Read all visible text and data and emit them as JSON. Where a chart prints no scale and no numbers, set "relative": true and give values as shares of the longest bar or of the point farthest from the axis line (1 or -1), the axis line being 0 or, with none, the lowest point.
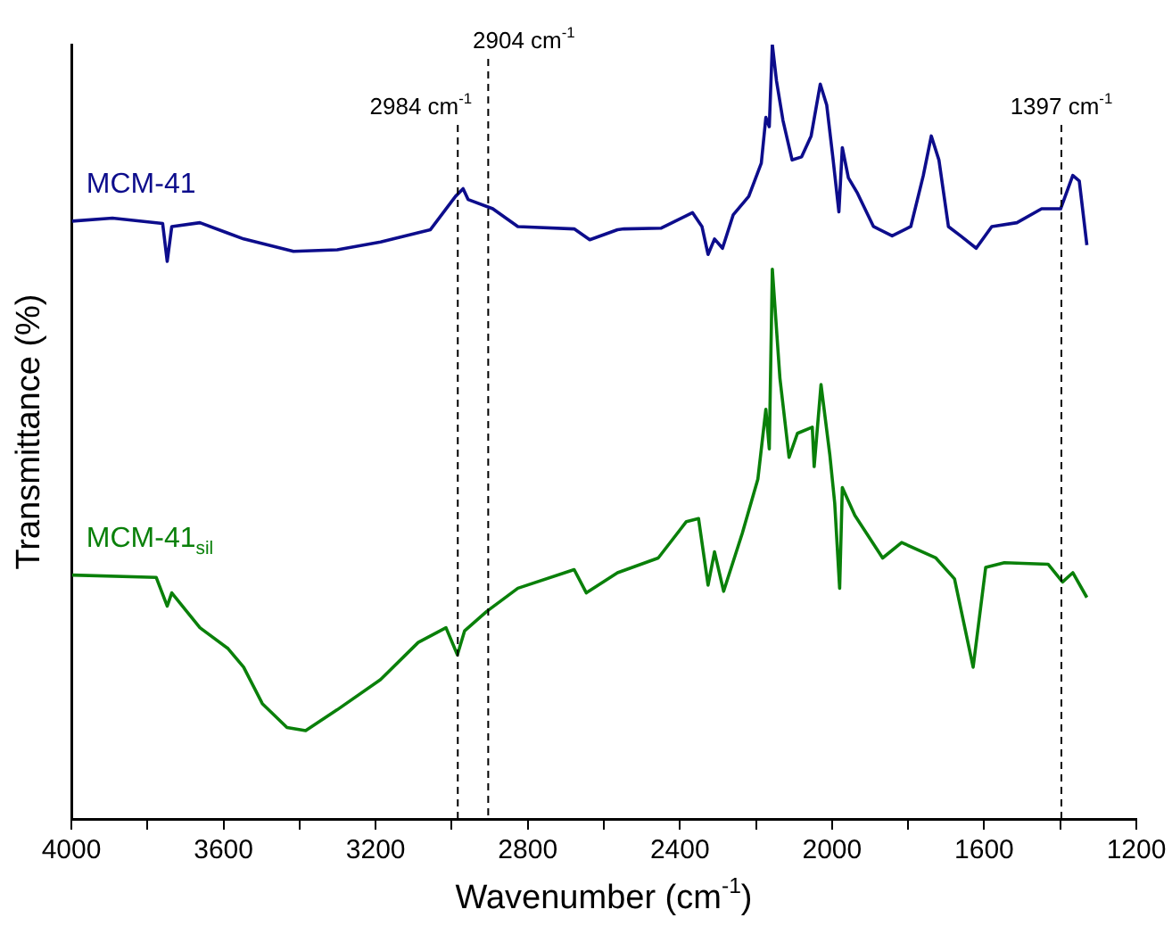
{
  "chart_data": {
    "type": "line",
    "relative": true,
    "xlabel": "Wavenumber (cm$^{-1}$)",
    "ylabel": "Transmittance (%)",
    "xlim": [
      4000,
      1200
    ],
    "xticks": [
      4000,
      {
        "value": 3800,
        "label": null
      },
      3600,
      {
        "value": 3400,
        "label": null
      },
      3200,
      {
        "value": 3000,
        "label": null
      },
      2800,
      {
        "value": 2600,
        "label": null
      },
      2400,
      {
        "value": 2200,
        "label": null
      },
      2000,
      {
        "value": 1800,
        "label": null
      },
      1600,
      {
        "value": 1400,
        "label": null
      },
      1200
    ],
    "tick_labels": "x",
    "grid": false,
    "legend": false,
    "marker": "none",
    "line_style": "solid",
    "ref_lines": [
      {
        "axis": "x",
        "value": 2984,
        "label": "2984 cm$^{-1}$",
        "color": "#000000",
        "line_style": "dashed"
      },
      {
        "axis": "x",
        "value": 2904,
        "label": "2904 cm$^{-1}$",
        "color": "#000000",
        "line_style": "dashed"
      },
      {
        "axis": "x",
        "value": 1397,
        "label": "1397 cm$^{-1}$",
        "color": "#000000",
        "line_style": "dashed"
      }
    ],
    "series": [
      {
        "name": "MCM-41",
        "color": "#0d0d8c",
        "x": [
          3998,
          3892,
          3760,
          3748,
          3736,
          3662,
          3547,
          3416,
          3301,
          3187,
          3056,
          2990,
          2970,
          2957,
          2892,
          2826,
          2678,
          2637,
          2564,
          2547,
          2449,
          2367,
          2342,
          2326,
          2309,
          2288,
          2260,
          2219,
          2186,
          2174,
          2165,
          2157,
          2146,
          2129,
          2105,
          2080,
          2055,
          2031,
          2014,
          1998,
          1982,
          1973,
          1957,
          1933,
          1891,
          1842,
          1793,
          1760,
          1739,
          1719,
          1694,
          1662,
          1621,
          1580,
          1514,
          1449,
          1399,
          1367,
          1350,
          1330
        ],
        "values": [
          0.772,
          0.776,
          0.769,
          0.72,
          0.765,
          0.77,
          0.749,
          0.733,
          0.735,
          0.745,
          0.761,
          0.804,
          0.814,
          0.8,
          0.788,
          0.765,
          0.762,
          0.748,
          0.761,
          0.762,
          0.763,
          0.783,
          0.765,
          0.729,
          0.749,
          0.737,
          0.78,
          0.804,
          0.847,
          0.906,
          0.894,
          1.0,
          0.953,
          0.902,
          0.851,
          0.855,
          0.882,
          0.949,
          0.922,
          0.855,
          0.784,
          0.867,
          0.828,
          0.808,
          0.765,
          0.753,
          0.765,
          0.831,
          0.882,
          0.851,
          0.765,
          0.753,
          0.737,
          0.765,
          0.77,
          0.788,
          0.788,
          0.831,
          0.824,
          0.741
        ]
      },
      {
        "name": "MCM-41$_{sil}$",
        "color": "#0a800a",
        "x": [
          3998,
          3777,
          3748,
          3736,
          3662,
          3588,
          3547,
          3498,
          3433,
          3384,
          3301,
          3187,
          3088,
          3015,
          2985,
          2966,
          2908,
          2826,
          2678,
          2646,
          2564,
          2457,
          2383,
          2351,
          2326,
          2309,
          2285,
          2236,
          2195,
          2174,
          2165,
          2157,
          2137,
          2113,
          2091,
          2052,
          2047,
          2029,
          2006,
          1993,
          1980,
          1973,
          1940,
          1867,
          1817,
          1727,
          1678,
          1629,
          1596,
          1547,
          1432,
          1394,
          1367,
          1330
        ],
        "values": [
          0.315,
          0.312,
          0.275,
          0.292,
          0.247,
          0.22,
          0.196,
          0.149,
          0.118,
          0.114,
          0.141,
          0.18,
          0.228,
          0.247,
          0.212,
          0.243,
          0.268,
          0.298,
          0.322,
          0.292,
          0.318,
          0.337,
          0.384,
          0.388,
          0.302,
          0.345,
          0.294,
          0.369,
          0.439,
          0.529,
          0.478,
          0.71,
          0.569,
          0.467,
          0.498,
          0.506,
          0.455,
          0.561,
          0.471,
          0.408,
          0.298,
          0.428,
          0.392,
          0.337,
          0.357,
          0.337,
          0.31,
          0.196,
          0.325,
          0.331,
          0.329,
          0.306,
          0.318,
          0.286
        ]
      }
    ]
  }
}
